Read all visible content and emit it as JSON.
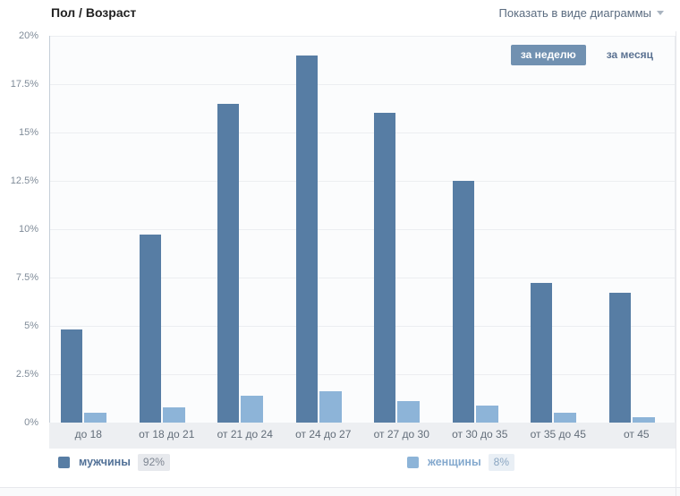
{
  "header": {
    "title": "Пол / Возраст",
    "view_selector": "Показать в виде диаграммы"
  },
  "period_tabs": [
    {
      "label": "за неделю",
      "active": true
    },
    {
      "label": "за месяц",
      "active": false
    }
  ],
  "chart_data": {
    "type": "bar",
    "title": "Пол / Возраст",
    "categories": [
      "до 18",
      "от 18 до 21",
      "от 21 до 24",
      "от 24 до 27",
      "от 27 до 30",
      "от 30 до 35",
      "от 35 до 45",
      "от 45"
    ],
    "series": [
      {
        "name": "мужчины",
        "total": "92%",
        "color": "#577da4",
        "values": [
          4.8,
          9.7,
          16.5,
          19.0,
          16.0,
          12.5,
          7.2,
          6.7
        ]
      },
      {
        "name": "женщины",
        "total": "8%",
        "color": "#8db4d8",
        "values": [
          0.5,
          0.8,
          1.4,
          1.6,
          1.1,
          0.9,
          0.5,
          0.3
        ]
      }
    ],
    "xlabel": "",
    "ylabel": "",
    "ylim": [
      0,
      20
    ],
    "yticks": [
      "20%",
      "17.5%",
      "15%",
      "12.5%",
      "10%",
      "7.5%",
      "5%",
      "2.5%",
      "0%"
    ],
    "grid": true,
    "legend_position": "bottom"
  },
  "colors": {
    "men_bar": "#577da4",
    "women_bar": "#8db4d8",
    "active_tab_bg": "#7191b1",
    "link_text": "#5b6c80"
  }
}
